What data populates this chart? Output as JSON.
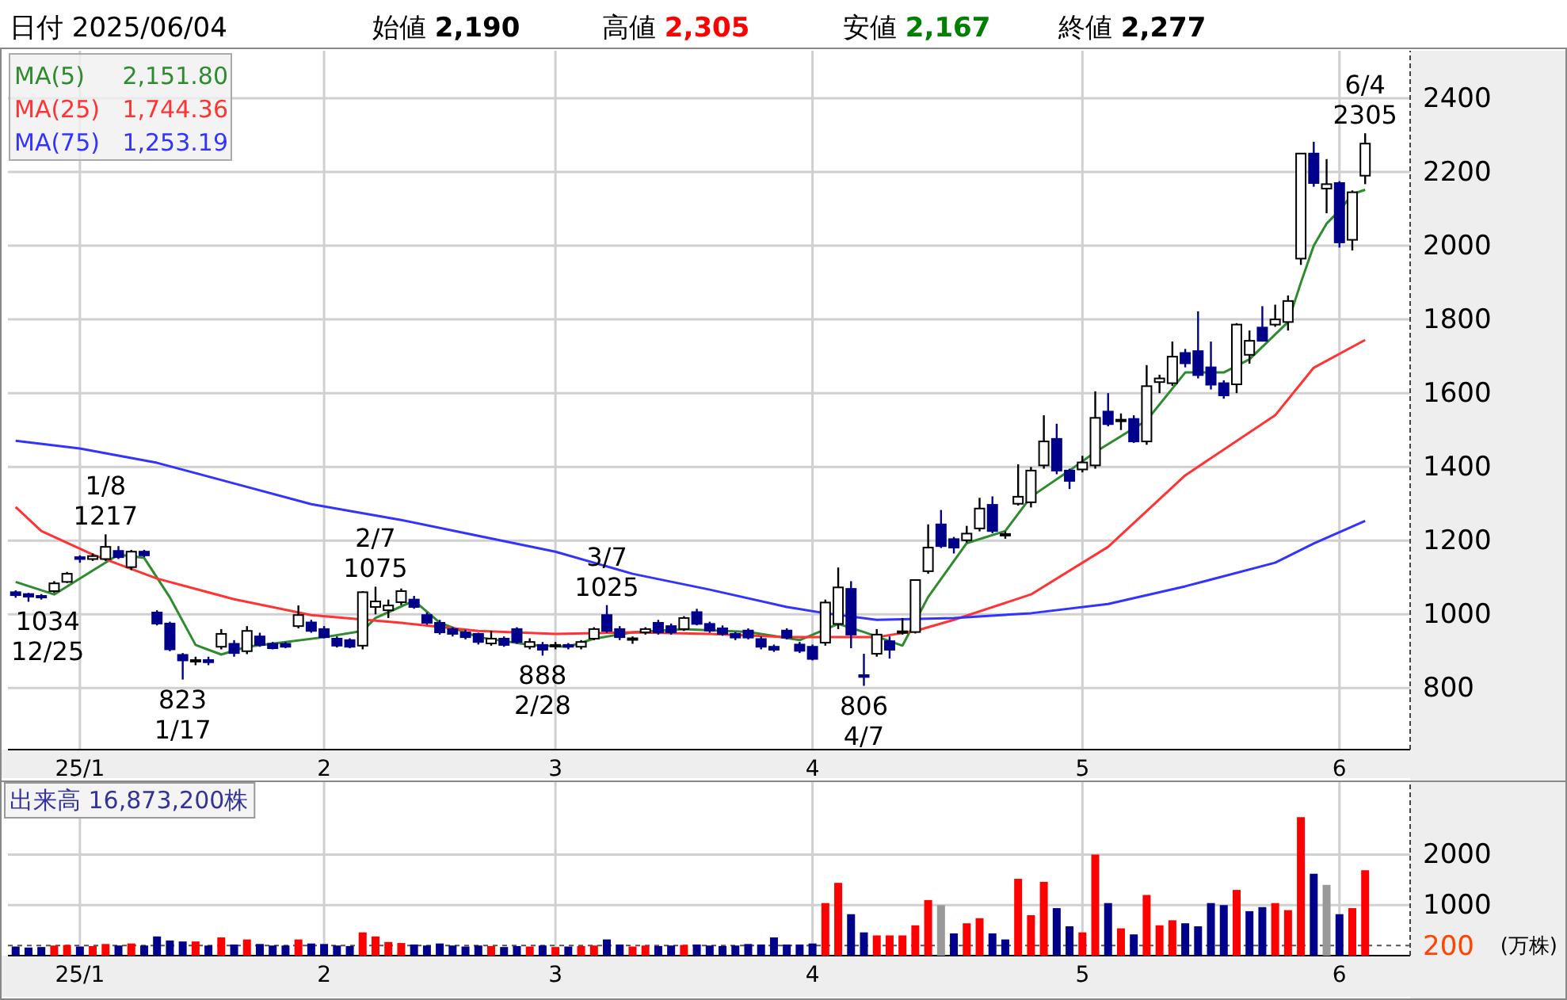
{
  "chart_data": [
    {
      "type": "candlestick",
      "title": "日付 2025/06/04",
      "categories": [
        null,
        null,
        null,
        null,
        null,
        "25/1",
        null,
        null,
        null,
        null,
        null,
        null,
        null,
        null,
        null,
        null,
        null,
        null,
        null,
        null,
        null,
        null,
        null,
        null,
        "2",
        null,
        null,
        null,
        null,
        null,
        null,
        null,
        null,
        null,
        null,
        null,
        null,
        null,
        null,
        null,
        null,
        null,
        "3",
        null,
        null,
        null,
        null,
        null,
        null,
        null,
        null,
        null,
        null,
        null,
        null,
        null,
        null,
        null,
        null,
        null,
        null,
        null,
        "4",
        null,
        null,
        null,
        null,
        null,
        null,
        null,
        null,
        null,
        null,
        null,
        null,
        null,
        null,
        null,
        null,
        null,
        null,
        null,
        null,
        "5",
        null,
        null,
        null,
        null,
        null,
        null,
        null,
        null,
        null,
        null,
        null,
        null,
        null,
        null,
        null,
        null,
        null,
        null,
        null,
        "6",
        null,
        null
      ],
      "ohlc": [
        [
          1060,
          1065,
          1045,
          1052
        ],
        [
          1055,
          1058,
          1034,
          1048
        ],
        [
          1050,
          1055,
          1040,
          1046
        ],
        [
          1063,
          1090,
          1058,
          1084
        ],
        [
          1088,
          1115,
          1085,
          1110
        ],
        [
          1155,
          1160,
          1140,
          1150
        ],
        [
          1150,
          1165,
          1145,
          1158
        ],
        [
          1150,
          1217,
          1145,
          1183
        ],
        [
          1172,
          1185,
          1150,
          1155
        ],
        [
          1128,
          1175,
          1120,
          1170
        ],
        [
          1170,
          1175,
          1155,
          1160
        ],
        [
          1005,
          1011,
          970,
          975
        ],
        [
          975,
          980,
          900,
          905
        ],
        [
          890,
          895,
          823,
          875
        ],
        [
          872,
          885,
          862,
          876
        ],
        [
          876,
          885,
          862,
          870
        ],
        [
          912,
          960,
          905,
          947
        ],
        [
          920,
          930,
          885,
          895
        ],
        [
          900,
          968,
          892,
          955
        ],
        [
          940,
          950,
          912,
          917
        ],
        [
          920,
          925,
          905,
          908
        ],
        [
          920,
          925,
          908,
          912
        ],
        [
          968,
          1024,
          962,
          998
        ],
        [
          978,
          985,
          950,
          955
        ],
        [
          960,
          968,
          935,
          938
        ],
        [
          934,
          940,
          910,
          915
        ],
        [
          930,
          935,
          908,
          912
        ],
        [
          915,
          1063,
          905,
          1060
        ],
        [
          1020,
          1075,
          1000,
          1035
        ],
        [
          1011,
          1040,
          990,
          1024
        ],
        [
          1033,
          1070,
          1025,
          1063
        ],
        [
          1040,
          1050,
          1015,
          1020
        ],
        [
          998,
          1005,
          972,
          977
        ],
        [
          977,
          985,
          945,
          951
        ],
        [
          960,
          965,
          940,
          947
        ],
        [
          951,
          958,
          932,
          938
        ],
        [
          947,
          950,
          918,
          925
        ],
        [
          921,
          955,
          915,
          934
        ],
        [
          934,
          940,
          912,
          917
        ],
        [
          960,
          965,
          920,
          925
        ],
        [
          912,
          935,
          905,
          925
        ],
        [
          917,
          925,
          888,
          904
        ],
        [
          915,
          925,
          905,
          917
        ],
        [
          917,
          922,
          905,
          912
        ],
        [
          912,
          930,
          905,
          925
        ],
        [
          934,
          965,
          930,
          960
        ],
        [
          998,
          1025,
          950,
          955
        ],
        [
          960,
          968,
          930,
          938
        ],
        [
          934,
          940,
          920,
          935
        ],
        [
          951,
          965,
          945,
          960
        ],
        [
          977,
          985,
          945,
          951
        ],
        [
          968,
          975,
          945,
          951
        ],
        [
          960,
          995,
          955,
          990
        ],
        [
          1006,
          1015,
          970,
          974
        ],
        [
          974,
          980,
          950,
          956
        ],
        [
          962,
          970,
          942,
          947
        ],
        [
          947,
          952,
          930,
          937
        ],
        [
          956,
          962,
          932,
          937
        ],
        [
          933,
          940,
          905,
          912
        ],
        [
          912,
          918,
          898,
          904
        ],
        [
          956,
          962,
          932,
          937
        ],
        [
          918,
          925,
          895,
          901
        ],
        [
          912,
          918,
          875,
          879
        ],
        [
          923,
          1040,
          915,
          1032
        ],
        [
          974,
          1127,
          960,
          1073
        ],
        [
          1069,
          1090,
          908,
          945
        ],
        [
          835,
          893,
          806,
          830
        ],
        [
          893,
          960,
          885,
          945
        ],
        [
          927,
          940,
          880,
          904
        ],
        [
          950,
          990,
          945,
          954
        ],
        [
          952,
          1095,
          948,
          1093
        ],
        [
          1117,
          1244,
          1110,
          1181
        ],
        [
          1244,
          1283,
          1180,
          1185
        ],
        [
          1204,
          1210,
          1165,
          1181
        ],
        [
          1201,
          1240,
          1195,
          1219
        ],
        [
          1233,
          1316,
          1225,
          1287
        ],
        [
          1297,
          1320,
          1220,
          1226
        ],
        [
          1216,
          1225,
          1205,
          1218
        ],
        [
          1300,
          1407,
          1295,
          1319
        ],
        [
          1304,
          1400,
          1290,
          1390
        ],
        [
          1404,
          1540,
          1395,
          1469
        ],
        [
          1476,
          1517,
          1380,
          1390
        ],
        [
          1390,
          1395,
          1340,
          1362
        ],
        [
          1393,
          1430,
          1385,
          1412
        ],
        [
          1404,
          1605,
          1395,
          1533
        ],
        [
          1550,
          1600,
          1510,
          1516
        ],
        [
          1524,
          1545,
          1500,
          1528
        ],
        [
          1530,
          1540,
          1465,
          1469
        ],
        [
          1469,
          1676,
          1460,
          1619
        ],
        [
          1630,
          1650,
          1600,
          1640
        ],
        [
          1627,
          1740,
          1620,
          1699
        ],
        [
          1709,
          1720,
          1670,
          1681
        ],
        [
          1714,
          1822,
          1640,
          1649
        ],
        [
          1670,
          1740,
          1610,
          1623
        ],
        [
          1627,
          1635,
          1585,
          1594
        ],
        [
          1624,
          1790,
          1600,
          1786
        ],
        [
          1704,
          1770,
          1680,
          1742
        ],
        [
          1778,
          1836,
          1740,
          1742
        ],
        [
          1786,
          1840,
          1780,
          1800
        ],
        [
          1793,
          1865,
          1770,
          1850
        ],
        [
          1965,
          2250,
          1948,
          2250
        ],
        [
          2250,
          2282,
          2160,
          2170
        ],
        [
          2155,
          2235,
          2088,
          2167
        ],
        [
          2170,
          2175,
          1995,
          2009
        ],
        [
          2016,
          2150,
          1987,
          2145
        ],
        [
          2190,
          2305,
          2167,
          2277
        ]
      ],
      "series": [
        {
          "name": "MA(5)",
          "type": "line",
          "color": "#2e8b2e",
          "values": [
            1088,
            null,
            null,
            1054,
            null,
            null,
            1119,
            null,
            1162,
            null,
            1153,
            null,
            1046,
            null,
            917,
            null,
            891,
            null,
            912,
            null,
            null,
            925,
            null,
            null,
            938,
            null,
            null,
            955,
            990,
            null,
            null,
            1037,
            null,
            977,
            null,
            null,
            938,
            null,
            null,
            null,
            917,
            null,
            null,
            912,
            null,
            934,
            null,
            null,
            951,
            null,
            null,
            null,
            960,
            null,
            null,
            null,
            null,
            952,
            null,
            null,
            null,
            930,
            null,
            null,
            974,
            null,
            952,
            null,
            null,
            915,
            null,
            1047,
            null,
            null,
            1193,
            null,
            null,
            1226,
            null,
            1319,
            null,
            null,
            1390,
            null,
            1440,
            null,
            null,
            null,
            1526,
            null,
            null,
            1656,
            null,
            null,
            1656,
            null,
            1692,
            null,
            null,
            1793,
            1900,
            2000,
            2060,
            2095,
            2140,
            2151.8
          ]
        },
        {
          "name": "MA(25)",
          "type": "line",
          "color": "#ff3333",
          "values": [
            1291,
            null,
            1226,
            null,
            null,
            null,
            1162,
            null,
            null,
            null,
            null,
            1097,
            null,
            null,
            null,
            null,
            null,
            1041,
            null,
            null,
            null,
            null,
            null,
            998,
            null,
            null,
            null,
            null,
            null,
            null,
            977,
            null,
            null,
            null,
            null,
            null,
            955,
            null,
            null,
            null,
            null,
            null,
            947,
            null,
            null,
            null,
            null,
            null,
            951,
            null,
            null,
            null,
            null,
            null,
            947,
            null,
            null,
            null,
            null,
            null,
            938,
            null,
            null,
            null,
            null,
            null,
            null,
            938,
            null,
            null,
            955,
            null,
            null,
            985,
            null,
            null,
            null,
            null,
            null,
            1054,
            null,
            null,
            null,
            null,
            null,
            1183,
            null,
            null,
            null,
            null,
            null,
            1377,
            null,
            null,
            null,
            null,
            null,
            null,
            1540,
            null,
            null,
            1669,
            null,
            null,
            null,
            1744.36
          ]
        },
        {
          "name": "MA(75)",
          "type": "line",
          "color": "#3333ff",
          "values": [
            1471,
            null,
            null,
            null,
            null,
            1450,
            null,
            null,
            null,
            null,
            null,
            1411,
            null,
            null,
            null,
            null,
            null,
            1355,
            null,
            null,
            null,
            null,
            null,
            1299,
            null,
            null,
            null,
            null,
            null,
            null,
            1256,
            null,
            null,
            null,
            null,
            null,
            1213,
            null,
            null,
            null,
            null,
            null,
            1170,
            null,
            null,
            null,
            null,
            null,
            1110,
            null,
            null,
            null,
            null,
            null,
            1067,
            null,
            null,
            null,
            null,
            null,
            1020,
            null,
            null,
            1003,
            null,
            null,
            null,
            985,
            null,
            null,
            null,
            null,
            null,
            990,
            null,
            null,
            null,
            null,
            null,
            1003,
            null,
            null,
            null,
            null,
            null,
            1028,
            null,
            null,
            null,
            null,
            null,
            1076,
            null,
            null,
            null,
            null,
            null,
            null,
            1140,
            null,
            null,
            1192,
            null,
            null,
            null,
            1253.19
          ]
        }
      ],
      "annotations": [
        "始値 2,190",
        "高値 2,305",
        "安値 2,167",
        "終値 2,277",
        "2,151.80",
        "1,744.36",
        "1,253.19",
        {
          "text": "1034\n12/25",
          "y": 1034
        },
        {
          "text": "1/8\n1217",
          "y": 1217
        },
        {
          "text": "823\n1/17",
          "y": 823
        },
        {
          "text": "2/7\n1075",
          "y": 1075
        },
        {
          "text": "888\n2/28",
          "y": 888
        },
        {
          "text": "3/7\n1025",
          "y": 1025
        },
        {
          "text": "806\n4/7",
          "y": 806
        },
        {
          "text": "6/4\n2305",
          "y": 2305
        }
      ],
      "ylim": [
        633,
        2529
      ],
      "yticks": [
        800,
        1000,
        1200,
        1400,
        1600,
        1800,
        2000,
        2200,
        2400
      ],
      "grid": true,
      "legend": "top left"
    },
    {
      "type": "bar",
      "title": "出来高 16,873,200株",
      "ylabel": "(万株)",
      "categories": [
        null,
        null,
        null,
        null,
        null,
        "25/1",
        null,
        null,
        null,
        null,
        null,
        null,
        null,
        null,
        null,
        null,
        null,
        null,
        null,
        null,
        null,
        null,
        null,
        null,
        "2",
        null,
        null,
        null,
        null,
        null,
        null,
        null,
        null,
        null,
        null,
        null,
        null,
        null,
        null,
        null,
        null,
        null,
        "3",
        null,
        null,
        null,
        null,
        null,
        null,
        null,
        null,
        null,
        null,
        null,
        null,
        null,
        null,
        null,
        null,
        null,
        null,
        null,
        "4",
        null,
        null,
        null,
        null,
        null,
        null,
        null,
        null,
        null,
        null,
        null,
        null,
        null,
        null,
        null,
        null,
        null,
        null,
        null,
        null,
        "5",
        null,
        null,
        null,
        null,
        null,
        null,
        null,
        null,
        null,
        null,
        null,
        null,
        null,
        null,
        null,
        null,
        null,
        null,
        null,
        "6",
        null,
        null
      ],
      "values": [
        180,
        160,
        170,
        200,
        210,
        180,
        190,
        230,
        200,
        240,
        200,
        380,
        300,
        280,
        280,
        200,
        360,
        220,
        320,
        230,
        200,
        200,
        320,
        240,
        230,
        200,
        190,
        460,
        380,
        270,
        250,
        220,
        200,
        240,
        200,
        180,
        200,
        190,
        170,
        190,
        180,
        200,
        170,
        180,
        190,
        200,
        320,
        220,
        180,
        200,
        190,
        200,
        210,
        220,
        200,
        190,
        200,
        230,
        220,
        360,
        220,
        220,
        240,
        1040,
        1440,
        820,
        460,
        400,
        400,
        400,
        600,
        1100,
        1000,
        440,
        640,
        740,
        440,
        320,
        1520,
        800,
        1460,
        940,
        580,
        460,
        2000,
        1040,
        540,
        420,
        1200,
        600,
        700,
        640,
        580,
        1040,
        1000,
        1300,
        880,
        960,
        1040,
        900,
        2740,
        1620,
        1400,
        820,
        940,
        1690
      ],
      "colors": [
        "#00008b",
        "#00008b",
        "#00008b",
        "#ff0000",
        "#ff0000",
        "#00008b",
        "#ff0000",
        "#ff0000",
        "#00008b",
        "#ff0000",
        "#00008b",
        "#00008b",
        "#00008b",
        "#00008b",
        "#ff0000",
        "#00008b",
        "#ff0000",
        "#00008b",
        "#ff0000",
        "#00008b",
        "#00008b",
        "#00008b",
        "#ff0000",
        "#00008b",
        "#00008b",
        "#00008b",
        "#00008b",
        "#ff0000",
        "#ff0000",
        "#ff0000",
        "#ff0000",
        "#00008b",
        "#00008b",
        "#00008b",
        "#00008b",
        "#00008b",
        "#00008b",
        "#ff0000",
        "#00008b",
        "#00008b",
        "#ff0000",
        "#00008b",
        "#ff0000",
        "#00008b",
        "#ff0000",
        "#ff0000",
        "#00008b",
        "#00008b",
        "#ff0000",
        "#ff0000",
        "#00008b",
        "#00008b",
        "#ff0000",
        "#00008b",
        "#00008b",
        "#00008b",
        "#00008b",
        "#00008b",
        "#00008b",
        "#00008b",
        "#00008b",
        "#00008b",
        "#00008b",
        "#ff0000",
        "#ff0000",
        "#00008b",
        "#00008b",
        "#ff0000",
        "#ff0000",
        "#ff0000",
        "#ff0000",
        "#ff0000",
        "#999999",
        "#00008b",
        "#ff0000",
        "#ff0000",
        "#00008b",
        "#00008b",
        "#ff0000",
        "#ff0000",
        "#ff0000",
        "#00008b",
        "#00008b",
        "#ff0000",
        "#ff0000",
        "#00008b",
        "#ff0000",
        "#00008b",
        "#ff0000",
        "#ff0000",
        "#ff0000",
        "#00008b",
        "#00008b",
        "#00008b",
        "#00008b",
        "#ff0000",
        "#00008b",
        "#00008b",
        "#ff0000",
        "#ff0000",
        "#ff0000",
        "#00008b",
        "#999999",
        "#00008b",
        "#ff0000",
        "#ff0000"
      ],
      "ylim": [
        0,
        3450
      ],
      "yticks": [
        1000,
        2000
      ],
      "ref_lines": [
        {
          "axis": "y",
          "value": 200,
          "label": "200",
          "color": "#555555",
          "line_style": "dashed"
        }
      ],
      "grid": true
    }
  ]
}
